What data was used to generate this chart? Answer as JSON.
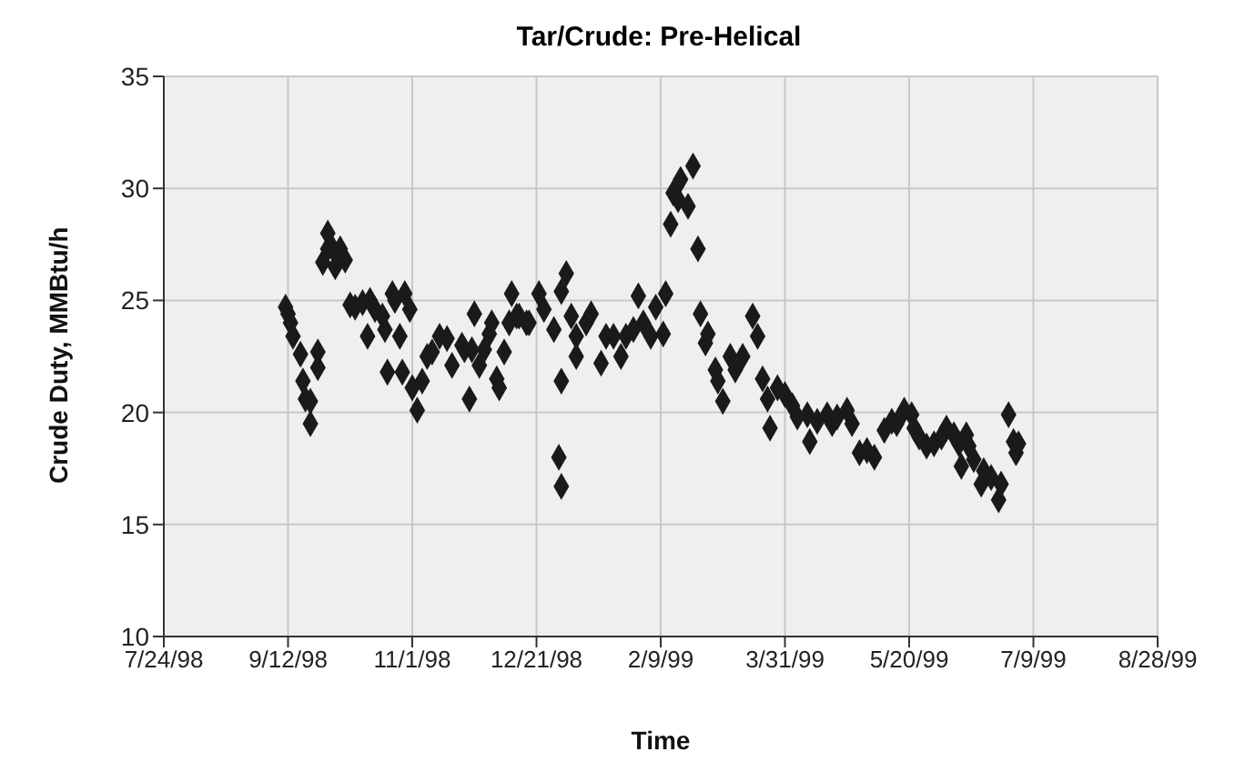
{
  "chart_data": {
    "type": "scatter",
    "title": "Tar/Crude: Pre-Helical",
    "xlabel": "Time",
    "ylabel": "Crude Duty, MMBtu/h",
    "xlim": [
      "1998-07-24",
      "1999-08-28"
    ],
    "xticks": [
      {
        "value": "1998-07-24",
        "label": "7/24/98"
      },
      {
        "value": "1998-09-12",
        "label": "9/12/98"
      },
      {
        "value": "1998-11-01",
        "label": "11/1/98"
      },
      {
        "value": "1998-12-21",
        "label": "12/21/98"
      },
      {
        "value": "1999-02-09",
        "label": "2/9/99"
      },
      {
        "value": "1999-03-31",
        "label": "3/31/99"
      },
      {
        "value": "1999-05-20",
        "label": "5/20/99"
      },
      {
        "value": "1999-07-09",
        "label": "7/9/99"
      },
      {
        "value": "1999-08-28",
        "label": "8/28/99"
      }
    ],
    "ylim": [
      10,
      35
    ],
    "yticks": [
      10,
      15,
      20,
      25,
      30,
      35
    ],
    "grid": true,
    "marker": "diamond",
    "series": [
      {
        "color": "#1a1a1a",
        "x": [
          "1998-09-11",
          "1998-09-12",
          "1998-09-13",
          "1998-09-14",
          "1998-09-17",
          "1998-09-18",
          "1998-09-19",
          "1998-09-21",
          "1998-09-21",
          "1998-09-24",
          "1998-09-24",
          "1998-09-26",
          "1998-09-28",
          "1998-09-28",
          "1998-09-30",
          "1998-10-01",
          "1998-10-03",
          "1998-10-05",
          "1998-10-07",
          "1998-10-09",
          "1998-10-12",
          "1998-10-14",
          "1998-10-15",
          "1998-10-17",
          "1998-10-20",
          "1998-10-21",
          "1998-10-22",
          "1998-10-24",
          "1998-10-25",
          "1998-10-27",
          "1998-10-28",
          "1998-10-29",
          "1998-10-31",
          "1998-11-01",
          "1998-11-03",
          "1998-11-05",
          "1998-11-07",
          "1998-11-09",
          "1998-11-12",
          "1998-11-15",
          "1998-11-17",
          "1998-11-21",
          "1998-11-22",
          "1998-11-24",
          "1998-11-25",
          "1998-11-26",
          "1998-11-28",
          "1998-11-30",
          "1998-12-02",
          "1998-12-03",
          "1998-12-05",
          "1998-12-06",
          "1998-12-08",
          "1998-12-10",
          "1998-12-11",
          "1998-12-13",
          "1998-12-17",
          "1998-12-14",
          "1998-12-18",
          "1998-12-22",
          "1998-12-24",
          "1998-12-28",
          "1998-12-31",
          "1999-01-02",
          "1998-12-31",
          "1998-12-30",
          "1998-12-31",
          "1999-01-04",
          "1999-01-06",
          "1999-01-06",
          "1999-01-10",
          "1999-01-12",
          "1999-01-16",
          "1999-01-18",
          "1999-01-21",
          "1999-01-24",
          "1999-01-26",
          "1999-01-29",
          "1999-01-31",
          "1999-02-02",
          "1999-02-05",
          "1999-02-07",
          "1999-02-10",
          "1999-02-11",
          "1999-02-13",
          "1999-02-14",
          "1999-02-16",
          "1999-02-17",
          "1999-02-20",
          "1999-02-22",
          "1999-02-24",
          "1999-02-25",
          "1999-02-27",
          "1999-02-28",
          "1999-03-03",
          "1999-03-04",
          "1999-03-06",
          "1999-03-09",
          "1999-03-11",
          "1999-03-14",
          "1999-03-18",
          "1999-03-20",
          "1999-03-22",
          "1999-03-24",
          "1999-03-25",
          "1999-03-28",
          "1999-03-31",
          "1999-04-03",
          "1999-04-05",
          "1999-04-09",
          "1999-04-10",
          "1999-04-13",
          "1999-04-17",
          "1999-04-19",
          "1999-04-21",
          "1999-04-25",
          "1999-04-27",
          "1999-04-30",
          "1999-05-03",
          "1999-05-06",
          "1999-05-10",
          "1999-05-13",
          "1999-05-15",
          "1999-05-18",
          "1999-05-21",
          "1999-05-22",
          "1999-05-24",
          "1999-05-27",
          "1999-05-30",
          "1999-06-02",
          "1999-06-04",
          "1999-06-07",
          "1999-06-09",
          "1999-06-10",
          "1999-06-12",
          "1999-06-13",
          "1999-06-15",
          "1999-06-18",
          "1999-06-19",
          "1999-06-22",
          "1999-06-25",
          "1999-06-26",
          "1999-06-29",
          "1999-07-01",
          "1999-07-02",
          "1999-07-03"
        ],
        "values": [
          24.7,
          24.4,
          24.0,
          23.4,
          22.6,
          21.4,
          20.6,
          20.5,
          19.5,
          22.7,
          22.0,
          26.7,
          28.0,
          27.3,
          27.3,
          26.5,
          27.3,
          26.8,
          24.8,
          24.7,
          24.9,
          23.4,
          25.0,
          24.6,
          24.3,
          23.7,
          21.8,
          25.3,
          25.0,
          23.4,
          21.8,
          25.3,
          24.6,
          21.1,
          20.1,
          21.4,
          22.5,
          22.7,
          23.4,
          23.3,
          22.1,
          23.0,
          22.8,
          20.6,
          22.8,
          24.4,
          22.1,
          22.8,
          23.5,
          24.0,
          21.5,
          21.1,
          22.7,
          24.0,
          25.3,
          24.3,
          24.0,
          24.3,
          24.0,
          25.3,
          24.6,
          23.7,
          25.4,
          26.2,
          21.4,
          18.0,
          16.7,
          24.3,
          23.4,
          22.5,
          24.0,
          24.4,
          22.2,
          23.4,
          23.4,
          22.5,
          23.4,
          23.7,
          25.2,
          24.0,
          23.4,
          24.7,
          23.5,
          25.3,
          28.4,
          29.8,
          29.5,
          30.4,
          29.2,
          31.0,
          27.3,
          24.4,
          23.1,
          23.5,
          21.9,
          21.4,
          20.5,
          22.5,
          21.9,
          22.5,
          24.3,
          23.4,
          21.5,
          20.6,
          19.3,
          21.1,
          20.8,
          20.3,
          19.8,
          19.9,
          18.7,
          19.6,
          19.9,
          19.5,
          19.8,
          20.1,
          19.5,
          18.2,
          18.3,
          18.0,
          19.2,
          19.6,
          19.5,
          20.1,
          19.9,
          19.3,
          18.9,
          18.5,
          18.6,
          18.9,
          19.3,
          19.0,
          18.6,
          17.6,
          19.0,
          18.5,
          17.9,
          16.8,
          17.4,
          17.1,
          16.1,
          16.8,
          19.9,
          18.7,
          18.2,
          18.6
        ]
      }
    ]
  }
}
